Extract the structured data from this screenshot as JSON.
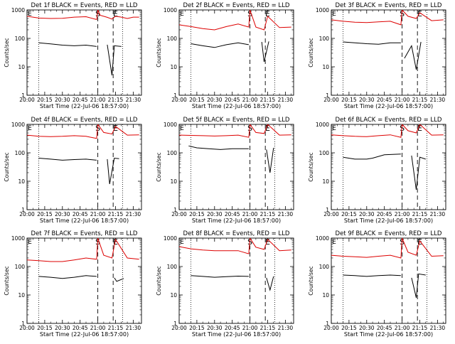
{
  "figure": {
    "xlabel": "Start Time (22-Jul-06 18:57:00)",
    "ylabel": "Counts/sec",
    "x_ticks": [
      "20:00",
      "20:15",
      "20:30",
      "20:45",
      "21:00",
      "21:15",
      "21:30"
    ],
    "y_ticks": [
      "1",
      "10",
      "100",
      "1000"
    ],
    "marker_labels": [
      "S",
      "E"
    ],
    "colors": {
      "events": "#000000",
      "lld": "#dd0000",
      "axes": "#000000"
    }
  },
  "chart_data": [
    {
      "type": "line",
      "title": "Det 1f BLACK = Events, RED = LLD",
      "x_range": [
        "20:00",
        "21:37"
      ],
      "y_range": [
        1,
        1000
      ],
      "y_scale": "log",
      "vlines": {
        "dotted": [
          "20:10",
          "21:21"
        ],
        "dashed": [
          "21:00",
          "21:13"
        ]
      },
      "series": [
        {
          "name": "Events",
          "color": "#000000",
          "x": [
            "20:00",
            "20:10",
            "20:20",
            "20:30",
            "20:40",
            "20:50",
            "20:59",
            "21:05",
            "21:08",
            "21:12",
            "21:14",
            "21:20"
          ],
          "y": [
            null,
            70,
            64,
            58,
            55,
            58,
            52,
            null,
            60,
            5,
            55,
            52
          ]
        },
        {
          "name": "LLD",
          "color": "#dd0000",
          "x": [
            "20:00",
            "20:10",
            "20:20",
            "20:30",
            "20:40",
            "20:50",
            "20:59",
            "21:00",
            "21:02",
            "21:08",
            "21:12",
            "21:15",
            "21:20",
            "21:25",
            "21:30",
            "21:35"
          ],
          "y": [
            600,
            520,
            500,
            510,
            560,
            580,
            460,
            1000,
            650,
            550,
            480,
            600,
            560,
            500,
            560,
            560
          ]
        }
      ]
    },
    {
      "type": "line",
      "title": "Det 2f BLACK = Events, RED = LLD",
      "x_range": [
        "20:00",
        "21:37"
      ],
      "y_range": [
        1,
        1000
      ],
      "y_scale": "log",
      "vlines": {
        "dotted": [
          "20:10",
          "21:21"
        ],
        "dashed": [
          "21:00",
          "21:13"
        ]
      },
      "series": [
        {
          "name": "Events",
          "color": "#000000",
          "x": [
            "20:00",
            "20:10",
            "20:20",
            "20:30",
            "20:40",
            "20:50",
            "20:59",
            "21:00",
            "21:10",
            "21:12",
            "21:16"
          ],
          "y": [
            null,
            65,
            55,
            48,
            60,
            70,
            60,
            null,
            75,
            15,
            78
          ]
        },
        {
          "name": "LLD",
          "color": "#dd0000",
          "x": [
            "20:00",
            "20:10",
            "20:20",
            "20:30",
            "20:40",
            "20:50",
            "20:59",
            "21:00",
            "21:05",
            "21:12",
            "21:15",
            "21:25",
            "21:35"
          ],
          "y": [
            300,
            260,
            220,
            200,
            260,
            320,
            250,
            1000,
            250,
            200,
            600,
            240,
            250
          ]
        }
      ]
    },
    {
      "type": "line",
      "title": "Det 3f BLACK = Events, RED = LLD",
      "x_range": [
        "20:00",
        "21:37"
      ],
      "y_range": [
        1,
        1000
      ],
      "y_scale": "log",
      "vlines": {
        "dotted": [
          "20:10",
          "21:21"
        ],
        "dashed": [
          "21:00",
          "21:13"
        ]
      },
      "series": [
        {
          "name": "Events",
          "color": "#000000",
          "x": [
            "20:00",
            "20:10",
            "20:20",
            "20:30",
            "20:40",
            "20:50",
            "20:59",
            "21:00",
            "21:02",
            "21:08",
            "21:12",
            "21:16"
          ],
          "y": [
            null,
            75,
            70,
            65,
            62,
            70,
            70,
            null,
            20,
            55,
            8,
            75
          ]
        },
        {
          "name": "LLD",
          "color": "#dd0000",
          "x": [
            "20:00",
            "20:10",
            "20:20",
            "20:30",
            "20:40",
            "20:50",
            "20:59",
            "21:00",
            "21:05",
            "21:12",
            "21:15",
            "21:25",
            "21:35"
          ],
          "y": [
            450,
            400,
            370,
            360,
            380,
            400,
            300,
            1000,
            600,
            500,
            800,
            420,
            450
          ]
        }
      ]
    },
    {
      "type": "line",
      "title": "Det 4f BLACK = Events, RED = LLD",
      "x_range": [
        "20:00",
        "21:37"
      ],
      "y_range": [
        1,
        1000
      ],
      "y_scale": "log",
      "vlines": {
        "dotted": [
          "20:10",
          "21:21"
        ],
        "dashed": [
          "21:00",
          "21:13"
        ]
      },
      "series": [
        {
          "name": "Events",
          "color": "#000000",
          "x": [
            "20:00",
            "20:10",
            "20:20",
            "20:30",
            "20:40",
            "20:50",
            "20:59",
            "21:00",
            "21:08",
            "21:10",
            "21:14",
            "21:18"
          ],
          "y": [
            null,
            65,
            60,
            55,
            58,
            60,
            55,
            null,
            60,
            8,
            65,
            62
          ]
        },
        {
          "name": "LLD",
          "color": "#dd0000",
          "x": [
            "20:00",
            "20:10",
            "20:20",
            "20:30",
            "20:40",
            "20:50",
            "20:59",
            "21:00",
            "21:05",
            "21:12",
            "21:15",
            "21:25",
            "21:35"
          ],
          "y": [
            420,
            380,
            370,
            380,
            400,
            380,
            320,
            1000,
            520,
            460,
            850,
            420,
            430
          ]
        }
      ]
    },
    {
      "type": "line",
      "title": "Det 5f BLACK = Events, RED = LLD",
      "x_range": [
        "20:00",
        "21:37"
      ],
      "y_range": [
        1,
        1000
      ],
      "y_scale": "log",
      "vlines": {
        "dotted": [
          "20:10",
          "21:21"
        ],
        "dashed": [
          "21:00",
          "21:13"
        ]
      },
      "series": [
        {
          "name": "Events",
          "color": "#000000",
          "x": [
            "20:00",
            "20:08",
            "20:15",
            "20:25",
            "20:35",
            "20:45",
            "20:59",
            "21:00",
            "21:14",
            "21:17",
            "21:20"
          ],
          "y": [
            null,
            175,
            150,
            140,
            130,
            140,
            140,
            null,
            130,
            20,
            150
          ]
        },
        {
          "name": "LLD",
          "color": "#dd0000",
          "x": [
            "20:00",
            "20:10",
            "20:20",
            "20:30",
            "20:40",
            "20:50",
            "20:59",
            "21:00",
            "21:05",
            "21:12",
            "21:15",
            "21:25",
            "21:35"
          ],
          "y": [
            420,
            410,
            400,
            390,
            400,
            420,
            350,
            1000,
            520,
            480,
            1000,
            420,
            430
          ]
        }
      ]
    },
    {
      "type": "line",
      "title": "Det 6f BLACK = Events, RED = LLD",
      "x_range": [
        "20:00",
        "21:37"
      ],
      "y_range": [
        1,
        1000
      ],
      "y_scale": "log",
      "vlines": {
        "dotted": [
          "20:10",
          "21:21"
        ],
        "dashed": [
          "21:00",
          "21:13"
        ]
      },
      "series": [
        {
          "name": "Events",
          "color": "#000000",
          "x": [
            "20:00",
            "20:10",
            "20:20",
            "20:30",
            "20:35",
            "20:45",
            "20:59",
            "21:00",
            "21:08",
            "21:12",
            "21:15",
            "21:20"
          ],
          "y": [
            null,
            70,
            60,
            60,
            65,
            85,
            90,
            null,
            80,
            5,
            70,
            60
          ]
        },
        {
          "name": "LLD",
          "color": "#dd0000",
          "x": [
            "20:00",
            "20:10",
            "20:20",
            "20:30",
            "20:40",
            "20:50",
            "20:59",
            "21:00",
            "21:05",
            "21:12",
            "21:15",
            "21:25",
            "21:35"
          ],
          "y": [
            430,
            400,
            380,
            370,
            400,
            430,
            350,
            1000,
            600,
            500,
            1000,
            420,
            430
          ]
        }
      ]
    },
    {
      "type": "line",
      "title": "Det 7f BLACK = Events, RED = LLD",
      "x_range": [
        "20:00",
        "21:37"
      ],
      "y_range": [
        1,
        1000
      ],
      "y_scale": "log",
      "vlines": {
        "dotted": [
          "20:10",
          "21:21"
        ],
        "dashed": [
          "21:00",
          "21:13"
        ]
      },
      "series": [
        {
          "name": "Events",
          "color": "#000000",
          "x": [
            "20:00",
            "20:10",
            "20:20",
            "20:30",
            "20:40",
            "20:50",
            "20:59",
            "21:00",
            "21:14",
            "21:16",
            "21:22"
          ],
          "y": [
            null,
            45,
            42,
            38,
            42,
            48,
            45,
            null,
            40,
            30,
            38
          ]
        },
        {
          "name": "LLD",
          "color": "#dd0000",
          "x": [
            "20:00",
            "20:10",
            "20:20",
            "20:30",
            "20:40",
            "20:50",
            "20:59",
            "21:00",
            "21:05",
            "21:12",
            "21:15",
            "21:25",
            "21:35"
          ],
          "y": [
            170,
            160,
            150,
            150,
            170,
            200,
            180,
            1000,
            250,
            200,
            900,
            200,
            180
          ]
        }
      ]
    },
    {
      "type": "line",
      "title": "Det 8f BLACK = Events, RED = LLD",
      "x_range": [
        "20:00",
        "21:37"
      ],
      "y_range": [
        1,
        1000
      ],
      "y_scale": "log",
      "vlines": {
        "dotted": [
          "20:10",
          "21:21"
        ],
        "dashed": [
          "21:00",
          "21:13"
        ]
      },
      "series": [
        {
          "name": "Events",
          "color": "#000000",
          "x": [
            "20:00",
            "20:10",
            "20:20",
            "20:30",
            "20:40",
            "20:50",
            "20:59",
            "21:00",
            "21:14",
            "21:17",
            "21:20"
          ],
          "y": [
            null,
            48,
            45,
            42,
            44,
            46,
            45,
            null,
            40,
            15,
            45
          ]
        },
        {
          "name": "LLD",
          "color": "#dd0000",
          "x": [
            "20:00",
            "20:10",
            "20:20",
            "20:30",
            "20:40",
            "20:50",
            "20:59",
            "21:00",
            "21:05",
            "21:12",
            "21:15",
            "21:25",
            "21:35"
          ],
          "y": [
            500,
            420,
            380,
            360,
            360,
            360,
            280,
            1000,
            480,
            400,
            900,
            360,
            380
          ]
        }
      ]
    },
    {
      "type": "line",
      "title": "Det 9f BLACK = Events, RED = LLD",
      "x_range": [
        "20:00",
        "21:37"
      ],
      "y_range": [
        1,
        1000
      ],
      "y_scale": "log",
      "vlines": {
        "dotted": [
          "20:10",
          "21:21"
        ],
        "dashed": [
          "21:00",
          "21:13"
        ]
      },
      "series": [
        {
          "name": "Events",
          "color": "#000000",
          "x": [
            "20:00",
            "20:10",
            "20:20",
            "20:30",
            "20:40",
            "20:50",
            "20:59",
            "21:00",
            "21:08",
            "21:12",
            "21:14",
            "21:20"
          ],
          "y": [
            null,
            50,
            48,
            45,
            48,
            50,
            48,
            null,
            40,
            8,
            55,
            50
          ]
        },
        {
          "name": "LLD",
          "color": "#dd0000",
          "x": [
            "20:00",
            "20:10",
            "20:20",
            "20:30",
            "20:40",
            "20:50",
            "20:59",
            "21:00",
            "21:05",
            "21:12",
            "21:15",
            "21:25",
            "21:35"
          ],
          "y": [
            250,
            230,
            220,
            210,
            230,
            250,
            200,
            1000,
            320,
            250,
            800,
            230,
            240
          ]
        }
      ]
    }
  ]
}
